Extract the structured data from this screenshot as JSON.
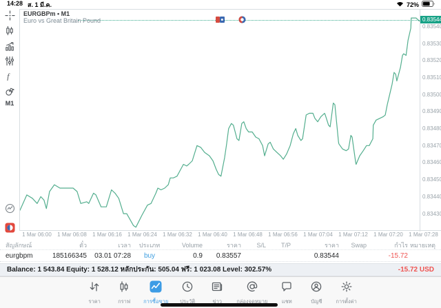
{
  "colors": {
    "chart_line": "#53ae8e",
    "price_label_bg": "#18a287",
    "buy_blue": "#3f9fe0",
    "loss_red": "#ef5350",
    "active_tab_blue": "#3d9ce5"
  },
  "status_bar": {
    "time": "14:28",
    "date": "ส. 1 มี.ค.",
    "battery_percent": "72%"
  },
  "chart": {
    "title": "EURGBPm • M1",
    "description": "Euro vs Great Britain Pound",
    "current_price": "0.83544",
    "sidebar": {
      "tools": [
        {
          "name": "crosshair-tool",
          "icon": "crosshair-icon"
        },
        {
          "name": "chart-type",
          "icon": "candlestick-icon"
        },
        {
          "name": "indicators",
          "icon": "indicators-icon"
        },
        {
          "name": "indicator-settings",
          "icon": "sliders-icon"
        },
        {
          "name": "functions",
          "icon": "function-icon"
        },
        {
          "name": "objects",
          "icon": "objects-icon"
        }
      ],
      "timeframe_label": "M1",
      "bottom": [
        {
          "name": "market-pulse",
          "icon": "pulse-icon"
        },
        {
          "name": "app-badge",
          "icon": "app-badge-icon"
        }
      ]
    }
  },
  "chart_data": {
    "type": "line",
    "symbol": "EURGBPm",
    "timeframe": "M1",
    "title": "Euro vs Great Britain Pound",
    "grid": false,
    "legend": false,
    "current_price": 0.83544,
    "y_range": [
      0.834195,
      0.835499
    ],
    "y_ticks": [
      "0.83540",
      "0.83530",
      "0.83520",
      "0.83510",
      "0.83500",
      "0.83490",
      "0.83480",
      "0.83470",
      "0.83460",
      "0.83450",
      "0.83440",
      "0.83430"
    ],
    "x_ticks": [
      "1 Mar 06:00",
      "1 Mar 06:08",
      "1 Mar 06:16",
      "1 Mar 06:24",
      "1 Mar 06:32",
      "1 Mar 06:40",
      "1 Mar 06:48",
      "1 Mar 06:56",
      "1 Mar 07:04",
      "1 Mar 07:12",
      "1 Mar 07:20",
      "1 Mar 07:28"
    ],
    "series": [
      {
        "name": "EURGBPm M1 close",
        "points": [
          [
            0.0,
            0.83432
          ],
          [
            0.017,
            0.83441
          ],
          [
            0.031,
            0.83439
          ],
          [
            0.043,
            0.83436
          ],
          [
            0.052,
            0.8344
          ],
          [
            0.06,
            0.83438
          ],
          [
            0.066,
            0.83433
          ],
          [
            0.074,
            0.83443
          ],
          [
            0.086,
            0.83447
          ],
          [
            0.1,
            0.83445
          ],
          [
            0.124,
            0.83445
          ],
          [
            0.133,
            0.83445
          ],
          [
            0.143,
            0.83443
          ],
          [
            0.152,
            0.83436
          ],
          [
            0.167,
            0.83437
          ],
          [
            0.172,
            0.83436
          ],
          [
            0.184,
            0.83442
          ],
          [
            0.19,
            0.83441
          ],
          [
            0.203,
            0.83434
          ],
          [
            0.216,
            0.83434
          ],
          [
            0.229,
            0.83444
          ],
          [
            0.238,
            0.83442
          ],
          [
            0.247,
            0.83439
          ],
          [
            0.259,
            0.8343
          ],
          [
            0.267,
            0.8343
          ],
          [
            0.284,
            0.83423
          ],
          [
            0.29,
            0.83422
          ],
          [
            0.305,
            0.83429
          ],
          [
            0.319,
            0.83435
          ],
          [
            0.328,
            0.83436
          ],
          [
            0.34,
            0.83442
          ],
          [
            0.345,
            0.83445
          ],
          [
            0.353,
            0.83444
          ],
          [
            0.362,
            0.83445
          ],
          [
            0.371,
            0.83447
          ],
          [
            0.376,
            0.83451
          ],
          [
            0.384,
            0.83451
          ],
          [
            0.393,
            0.83452
          ],
          [
            0.402,
            0.83456
          ],
          [
            0.409,
            0.83459
          ],
          [
            0.417,
            0.83458
          ],
          [
            0.422,
            0.83459
          ],
          [
            0.431,
            0.83461
          ],
          [
            0.443,
            0.8347
          ],
          [
            0.452,
            0.83469
          ],
          [
            0.462,
            0.83466
          ],
          [
            0.474,
            0.83464
          ],
          [
            0.483,
            0.83461
          ],
          [
            0.491,
            0.83456
          ],
          [
            0.497,
            0.83453
          ],
          [
            0.503,
            0.83452
          ],
          [
            0.512,
            0.83463
          ],
          [
            0.517,
            0.83471
          ],
          [
            0.522,
            0.8348
          ],
          [
            0.529,
            0.83483
          ],
          [
            0.534,
            0.83482
          ],
          [
            0.543,
            0.83474
          ],
          [
            0.548,
            0.83473
          ],
          [
            0.555,
            0.83483
          ],
          [
            0.56,
            0.83484
          ],
          [
            0.566,
            0.8348
          ],
          [
            0.572,
            0.83478
          ],
          [
            0.581,
            0.83478
          ],
          [
            0.59,
            0.83475
          ],
          [
            0.598,
            0.83474
          ],
          [
            0.607,
            0.8347
          ],
          [
            0.612,
            0.83464
          ],
          [
            0.621,
            0.83471
          ],
          [
            0.626,
            0.83472
          ],
          [
            0.634,
            0.83468
          ],
          [
            0.643,
            0.83466
          ],
          [
            0.652,
            0.83464
          ],
          [
            0.659,
            0.83462
          ],
          [
            0.667,
            0.83465
          ],
          [
            0.676,
            0.8347
          ],
          [
            0.684,
            0.83477
          ],
          [
            0.69,
            0.8348
          ],
          [
            0.695,
            0.83476
          ],
          [
            0.703,
            0.83473
          ],
          [
            0.707,
            0.83474
          ],
          [
            0.716,
            0.83488
          ],
          [
            0.724,
            0.83489
          ],
          [
            0.733,
            0.83489
          ],
          [
            0.738,
            0.83486
          ],
          [
            0.745,
            0.83484
          ],
          [
            0.753,
            0.83487
          ],
          [
            0.762,
            0.83489
          ],
          [
            0.764,
            0.83488
          ],
          [
            0.772,
            0.83482
          ],
          [
            0.776,
            0.83481
          ],
          [
            0.784,
            0.83495
          ],
          [
            0.788,
            0.83494
          ],
          [
            0.797,
            0.83472
          ],
          [
            0.798,
            0.83471
          ],
          [
            0.807,
            0.83468
          ],
          [
            0.816,
            0.83467
          ],
          [
            0.822,
            0.83468
          ],
          [
            0.828,
            0.83476
          ],
          [
            0.831,
            0.83475
          ],
          [
            0.84,
            0.8346
          ],
          [
            0.841,
            0.83459
          ],
          [
            0.85,
            0.83464
          ],
          [
            0.859,
            0.83467
          ],
          [
            0.867,
            0.8347
          ],
          [
            0.874,
            0.8347
          ],
          [
            0.883,
            0.83474
          ],
          [
            0.884,
            0.83482
          ],
          [
            0.891,
            0.83485
          ],
          [
            0.9,
            0.83486
          ],
          [
            0.909,
            0.83487
          ],
          [
            0.914,
            0.83488
          ],
          [
            0.919,
            0.83494
          ],
          [
            0.926,
            0.83501
          ],
          [
            0.931,
            0.83506
          ],
          [
            0.936,
            0.83513
          ],
          [
            0.94,
            0.83512
          ],
          [
            0.943,
            0.83508
          ],
          [
            0.952,
            0.83516
          ],
          [
            0.957,
            0.83523
          ],
          [
            0.96,
            0.83524
          ],
          [
            0.966,
            0.83523
          ],
          [
            0.971,
            0.83532
          ],
          [
            0.978,
            0.83539
          ],
          [
            0.979,
            0.83545
          ],
          [
            0.983,
            0.83545
          ],
          [
            0.991,
            0.83545
          ],
          [
            1.0,
            0.83543
          ]
        ]
      }
    ]
  },
  "positions_table": {
    "columns": [
      {
        "key": "symbol",
        "label": "สัญลักษณ์",
        "value": "eurgbpm"
      },
      {
        "key": "ticket",
        "label": "ตั๋ว",
        "value": "185166345"
      },
      {
        "key": "time",
        "label": "เวลา",
        "value": "03.01 07:28"
      },
      {
        "key": "type",
        "label": "ประเภท",
        "value": "buy"
      },
      {
        "key": "volume",
        "label": "Volume",
        "value": "0.9"
      },
      {
        "key": "price_open",
        "label": "ราคา",
        "value": "0.83557"
      },
      {
        "key": "sl",
        "label": "S/L",
        "value": ""
      },
      {
        "key": "tp",
        "label": "T/P",
        "value": ""
      },
      {
        "key": "price_current",
        "label": "ราคา",
        "value": "0.83544"
      },
      {
        "key": "swap",
        "label": "Swap",
        "value": ""
      },
      {
        "key": "profit",
        "label": "กำไร",
        "value": "-15.72"
      },
      {
        "key": "note",
        "label": "หมายเหตุ",
        "value": ""
      }
    ]
  },
  "account_bar": {
    "summary": "Balance: 1 543.84 Equity: 1 528.12 หลักประกัน: 505.04 ฟรี: 1 023.08 Level: 302.57%",
    "profit": "-15.72  USD"
  },
  "tab_bar": {
    "items": [
      {
        "id": "quotes",
        "label": "ราคา",
        "icon": "quotes-arrows-icon",
        "active": false
      },
      {
        "id": "charts",
        "label": "กราฟ",
        "icon": "chart-candles-icon",
        "active": false
      },
      {
        "id": "trade",
        "label": "การซื้อขาย",
        "icon": "trade-chart-icon",
        "active": true
      },
      {
        "id": "history",
        "label": "ประวัติ",
        "icon": "history-clock-icon",
        "active": false
      },
      {
        "id": "news",
        "label": "ข่าว",
        "icon": "news-icon",
        "active": false
      },
      {
        "id": "mailbox",
        "label": "กล่องจดหมาย",
        "icon": "mailbox-at-icon",
        "active": false
      },
      {
        "id": "chat",
        "label": "แชท",
        "icon": "chat-bubble-icon",
        "active": false
      },
      {
        "id": "accounts",
        "label": "บัญชี",
        "icon": "account-person-icon",
        "active": false
      },
      {
        "id": "settings",
        "label": "การตั้งค่า",
        "icon": "settings-gear-icon",
        "active": false
      }
    ]
  }
}
